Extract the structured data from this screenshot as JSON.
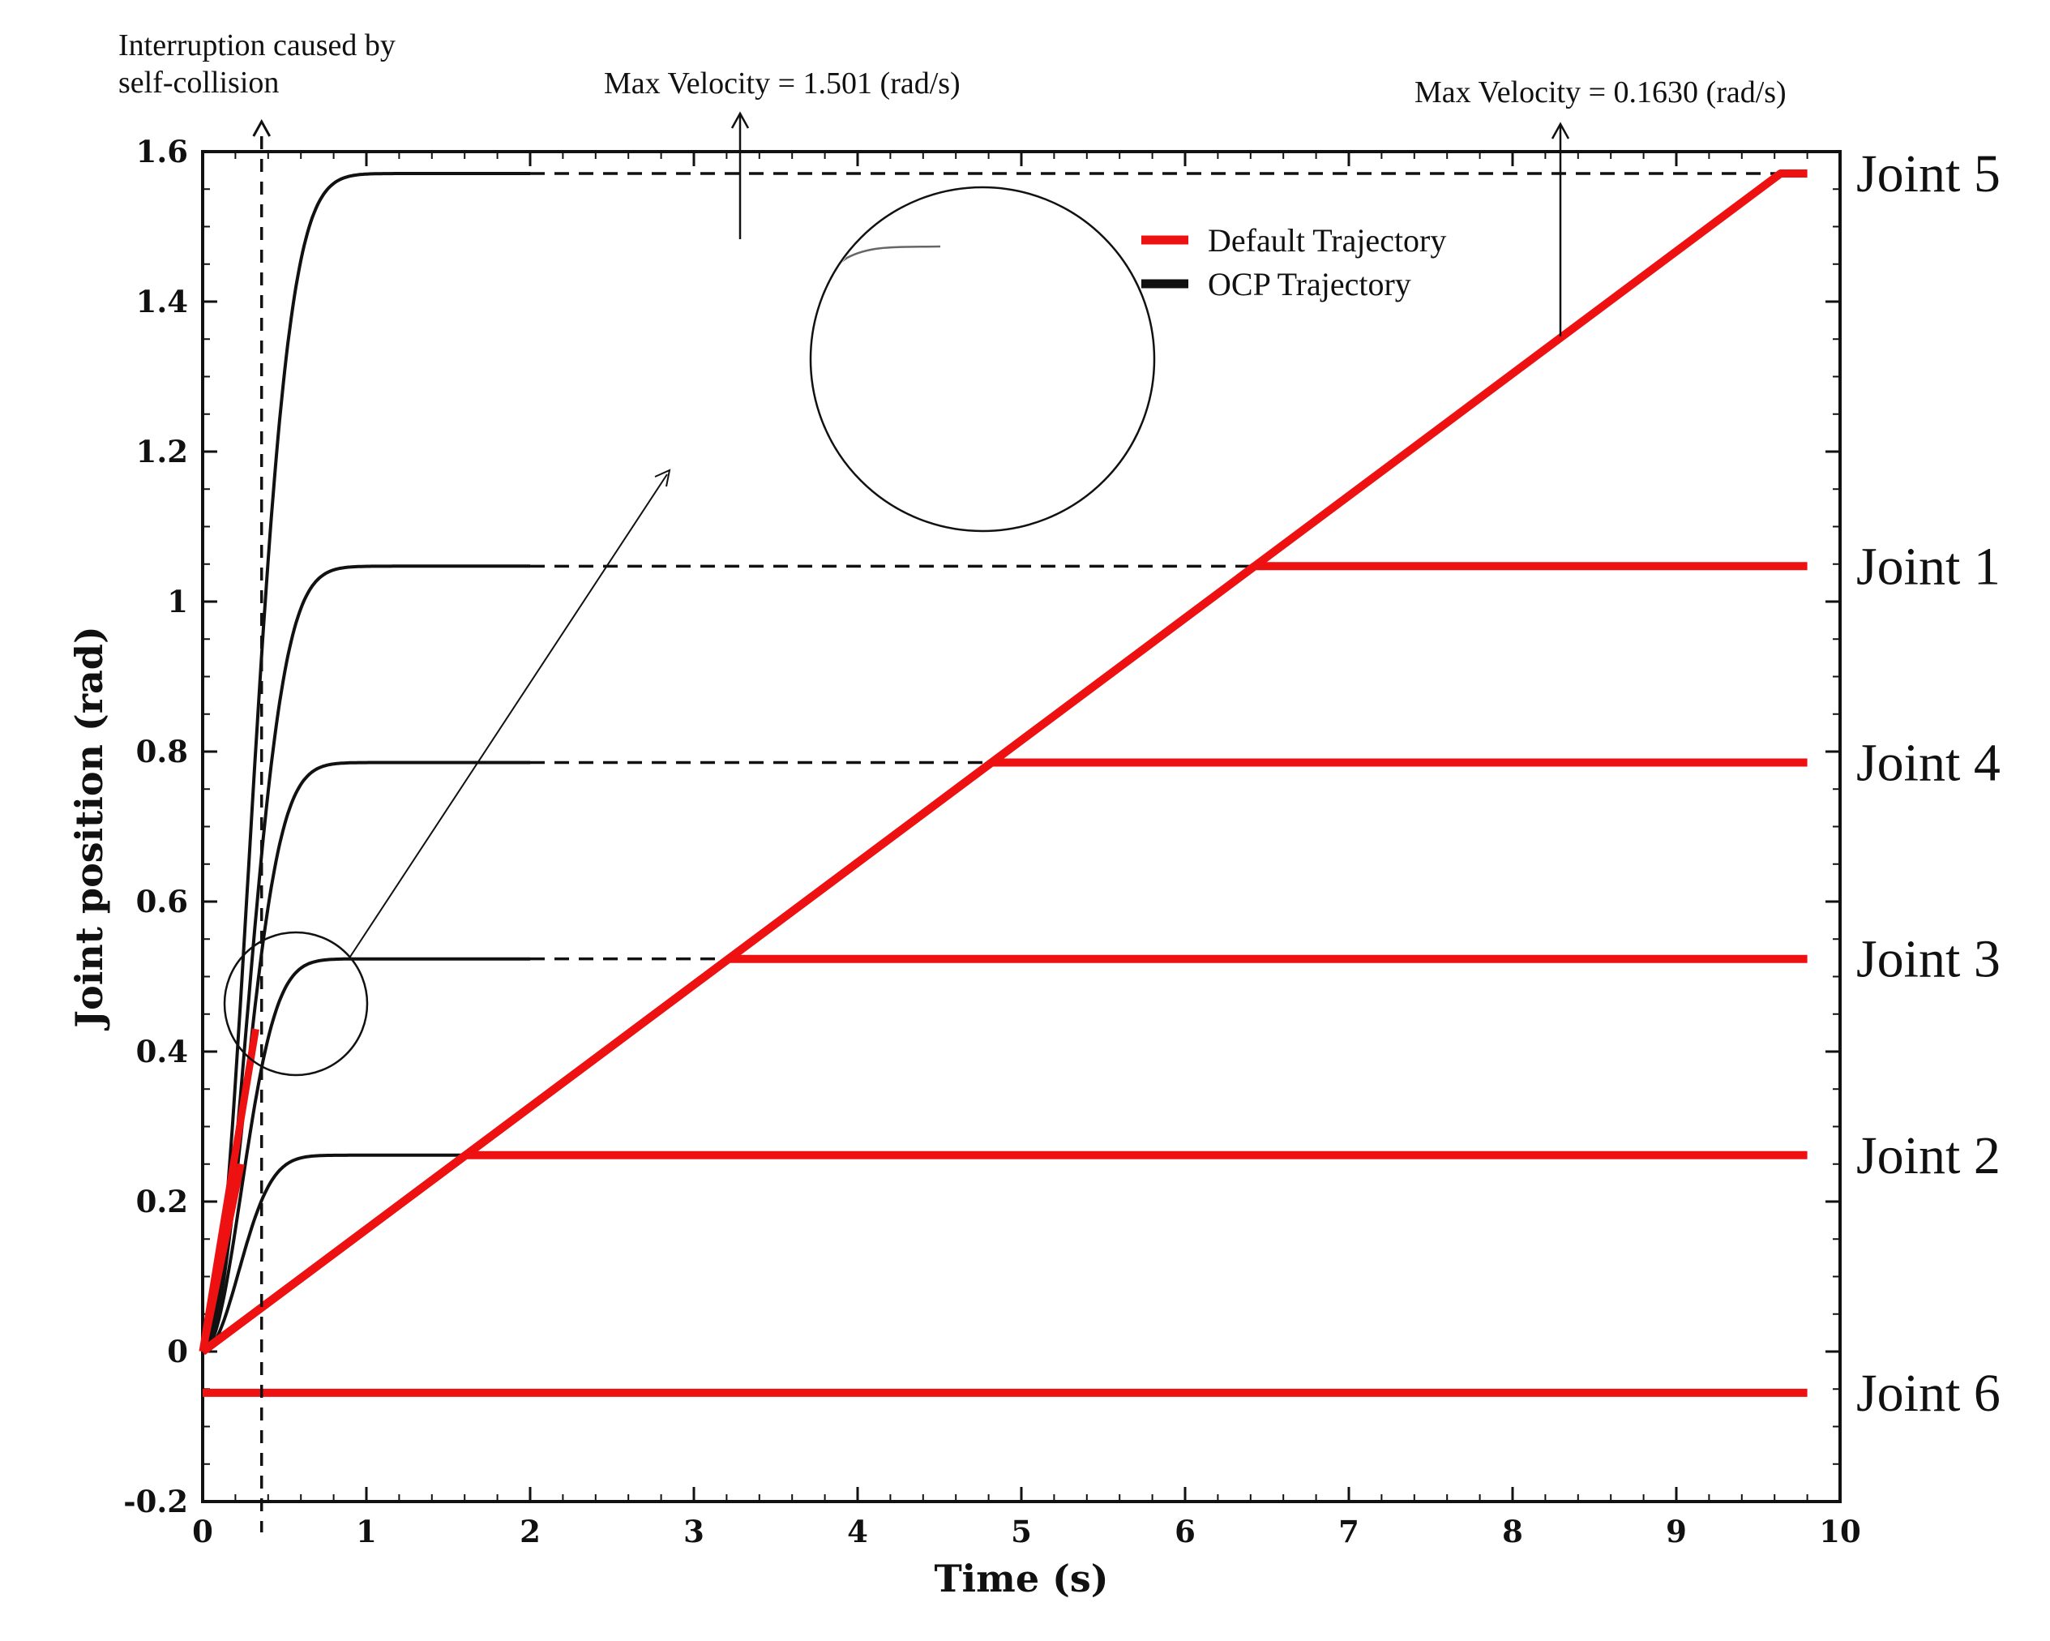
{
  "chart_data": {
    "type": "line",
    "title": "",
    "xlabel": "Time (s)",
    "ylabel": "Joint position (rad)",
    "xlim": [
      0,
      10
    ],
    "ylim": [
      -0.2,
      1.6
    ],
    "xticks": [
      "0",
      "1",
      "2",
      "3",
      "4",
      "5",
      "6",
      "7",
      "8",
      "9",
      "10"
    ],
    "yticks": [
      "-0.2",
      "0",
      "0.2",
      "0.4",
      "0.6",
      "0.8",
      "1",
      "1.2",
      "1.4",
      "1.6"
    ],
    "grid": false,
    "legend": {
      "position": "top-right",
      "entries": [
        {
          "label": "Default Trajectory",
          "color": "#ee1111"
        },
        {
          "label": "OCP Trajectory",
          "color": "#111111"
        }
      ]
    },
    "default_velocity": 0.163,
    "interruption_time": 0.36,
    "ocp_end_time": 2.0,
    "default_end_time": 9.8,
    "joints": [
      {
        "name": "Joint 5",
        "target": 1.5708,
        "ocp_rise": 0.38
      },
      {
        "name": "Joint 1",
        "target": 1.0472,
        "ocp_rise": 0.36
      },
      {
        "name": "Joint 4",
        "target": 0.7854,
        "ocp_rise": 0.34
      },
      {
        "name": "Joint 3",
        "target": 0.5236,
        "ocp_rise": 0.32
      },
      {
        "name": "Joint 2",
        "target": 0.2618,
        "ocp_rise": 0.3
      },
      {
        "name": "Joint 6",
        "target": -0.055,
        "ocp_rise": 0
      }
    ],
    "annotations": {
      "interruption": "Interruption caused by\nself-collision",
      "max_velocity_ocp": "Max Velocity = 1.501 (rad/s)",
      "max_velocity_default": "Max Velocity = 0.1630 (rad/s)"
    }
  }
}
